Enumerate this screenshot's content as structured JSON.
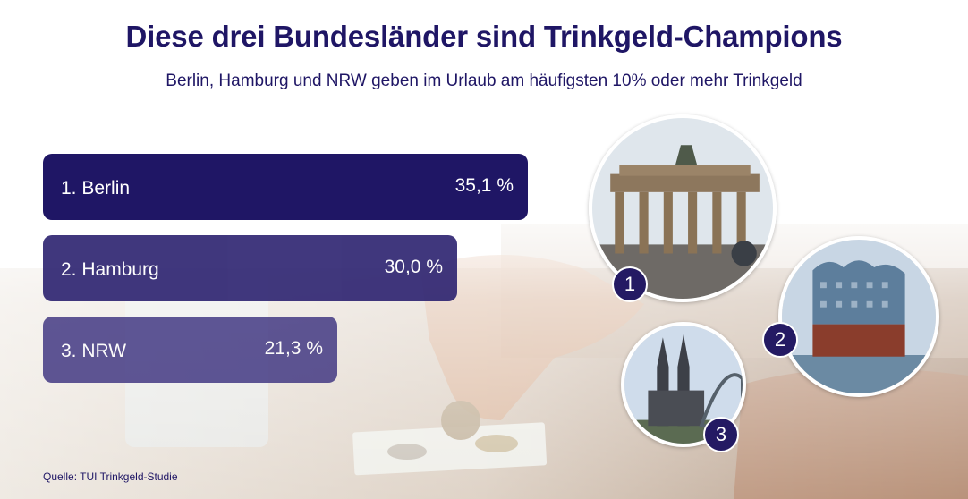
{
  "header": {
    "title": "Diese drei Bundesländer sind Trinkgeld-Champions",
    "subtitle": "Berlin, Hamburg und NRW geben im Urlaub am häufigsten 10% oder mehr Trinkgeld"
  },
  "chart_data": {
    "type": "bar",
    "orientation": "horizontal",
    "categories": [
      "1. Berlin",
      "2. Hamburg",
      "3. NRW"
    ],
    "values": [
      35.1,
      30.0,
      21.3
    ],
    "value_labels": [
      "35,1 %",
      "30,0 %",
      "21,3 %"
    ],
    "unit": "%",
    "bar_colors": [
      "#1f1665",
      "#2c2270",
      "#3d3380"
    ],
    "title": "Diese drei Bundesländer sind Trinkgeld-Champions",
    "subtitle": "Berlin, Hamburg und NRW geben im Urlaub am häufigsten 10% oder mehr Trinkgeld",
    "xlabel": "",
    "ylabel": "",
    "grid": false
  },
  "photos": [
    {
      "subject": "brandenburg-gate-icon",
      "badge": "1"
    },
    {
      "subject": "elbphilharmonie-icon",
      "badge": "2"
    },
    {
      "subject": "cologne-cathedral-icon",
      "badge": "3"
    }
  ],
  "colors": {
    "accent": "#1f1665",
    "background": "#ffffff",
    "badge": "#241a63"
  },
  "footer": {
    "source": "Quelle: TUI Trinkgeld-Studie"
  }
}
